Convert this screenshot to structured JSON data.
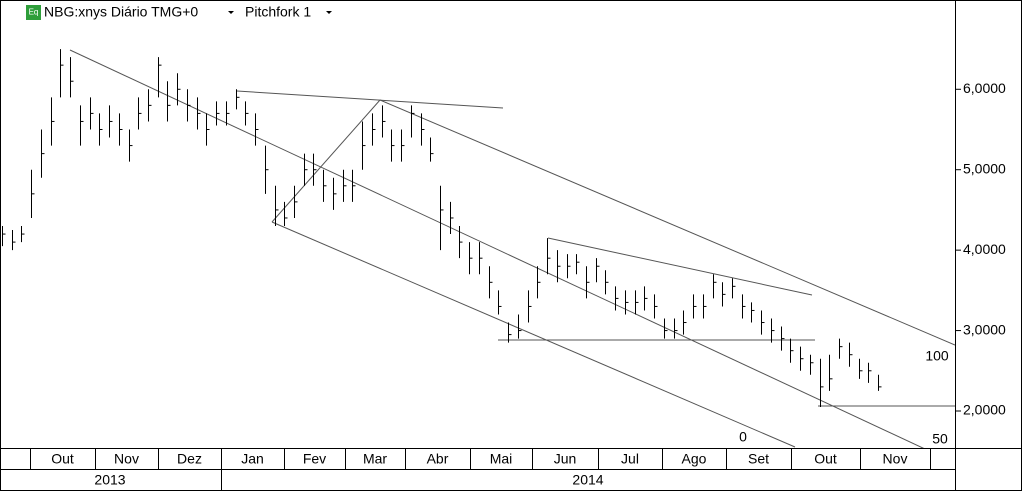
{
  "chart_data": {
    "type": "ohlc",
    "title": "NBG:xnys Diário TMG+0",
    "study": "Pitchfork 1",
    "icon": "Eq",
    "pitchfork_labels": [
      "0",
      "50",
      "100"
    ],
    "months": [
      "Out",
      "Nov",
      "Dez",
      "Jan",
      "Fev",
      "Mar",
      "Abr",
      "Mai",
      "Jun",
      "Jul",
      "Ago",
      "Set",
      "Out",
      "Nov"
    ],
    "years": [
      "2013",
      "2014"
    ],
    "ylim": [
      1540,
      7110
    ],
    "yticks": [
      {
        "value": 2000,
        "label": "2,0000"
      },
      {
        "value": 3000,
        "label": "3,0000"
      },
      {
        "value": 4000,
        "label": "4,0000"
      },
      {
        "value": 5000,
        "label": "5,0000"
      },
      {
        "value": 6000,
        "label": "6,0000"
      }
    ],
    "color": "#000000",
    "high": [
      4300,
      4250,
      4300,
      5000,
      5500,
      5900,
      6500,
      6400,
      5800,
      5900,
      5700,
      5800,
      5700,
      5500,
      5900,
      6000,
      6400,
      6100,
      6200,
      6000,
      5900,
      5700,
      5850,
      5850,
      6000,
      5850,
      5700,
      5300,
      4800,
      4600,
      4800,
      5200,
      5200,
      5000,
      4900,
      5000,
      5000,
      5600,
      5700,
      5800,
      5500,
      5500,
      5800,
      5700,
      5400,
      4800,
      4600,
      4300,
      4100,
      4100,
      3800,
      3500,
      3100,
      3200,
      3500,
      3800,
      4150,
      4000,
      3950,
      3950,
      3800,
      3900,
      3750,
      3550,
      3500,
      3500,
      3550,
      3450,
      3150,
      3150,
      3250,
      3450,
      3450,
      3700,
      3600,
      3650,
      3450,
      3350,
      3250,
      3150,
      3050,
      2900,
      2800,
      2700,
      2650,
      2700,
      2900,
      2850,
      2650,
      2600,
      2450
    ],
    "low": [
      4050,
      4000,
      4100,
      4400,
      4900,
      5300,
      5900,
      5900,
      5300,
      5500,
      5300,
      5400,
      5300,
      5100,
      5500,
      5600,
      5900,
      5600,
      5800,
      5600,
      5500,
      5300,
      5550,
      5550,
      5750,
      5550,
      5300,
      4700,
      4300,
      4300,
      4400,
      4800,
      4800,
      4600,
      4500,
      4600,
      4600,
      5000,
      5300,
      5400,
      5100,
      5100,
      5400,
      5300,
      5100,
      4000,
      4200,
      3900,
      3700,
      3700,
      3400,
      3200,
      2850,
      2900,
      3100,
      3400,
      3700,
      3600,
      3650,
      3700,
      3400,
      3600,
      3450,
      3250,
      3200,
      3200,
      3250,
      3150,
      2900,
      2900,
      2950,
      3150,
      3150,
      3400,
      3300,
      3400,
      3150,
      3100,
      2950,
      2850,
      2750,
      2600,
      2500,
      2450,
      2050,
      2250,
      2650,
      2550,
      2400,
      2350,
      2250
    ],
    "close": [
      4200,
      4100,
      4200,
      4700,
      5200,
      5600,
      6300,
      6100,
      5600,
      5700,
      5500,
      5600,
      5500,
      5300,
      5700,
      5800,
      6300,
      5800,
      6000,
      5800,
      5700,
      5500,
      5700,
      5700,
      5900,
      5700,
      5500,
      5000,
      4500,
      4400,
      4600,
      5000,
      5000,
      4800,
      4700,
      4800,
      4800,
      5300,
      5500,
      5600,
      5300,
      5300,
      5700,
      5500,
      5200,
      4500,
      4400,
      4100,
      3900,
      3900,
      3600,
      3300,
      2950,
      3000,
      3300,
      3600,
      3900,
      3800,
      3800,
      3850,
      3600,
      3800,
      3600,
      3400,
      3350,
      3350,
      3400,
      3300,
      3000,
      3000,
      3100,
      3300,
      3300,
      3600,
      3450,
      3550,
      3300,
      3250,
      3100,
      3000,
      2900,
      2750,
      2650,
      2600,
      2300,
      2400,
      2800,
      2700,
      2500,
      2500,
      2300
    ]
  }
}
